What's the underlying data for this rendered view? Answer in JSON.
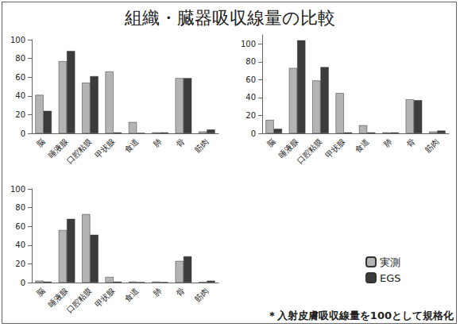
{
  "title": "組織・臓器吸収線量の比較",
  "note": "＊入射皮膚吸収線量を100として規格化",
  "legend": "lower right",
  "chart_data": [
    {
      "type": "bar",
      "grid": false,
      "categories": [
        "脳",
        "唾液腺",
        "口腔粘膜",
        "甲状腺",
        "食道",
        "肺",
        "骨",
        "筋肉"
      ],
      "series": [
        {
          "name": "実測",
          "color": "#b4b4b4",
          "values": [
            41,
            77,
            54,
            66,
            12,
            1,
            59,
            2
          ]
        },
        {
          "name": "EGS",
          "color": "#3c3c3c",
          "values": [
            24,
            88,
            61,
            1,
            0.5,
            1,
            59,
            4
          ]
        }
      ],
      "ylim": [
        0,
        100
      ],
      "yticks": [
        0,
        20,
        40,
        60,
        80,
        100
      ]
    },
    {
      "type": "bar",
      "grid": false,
      "categories": [
        "脳",
        "唾液腺",
        "口腔粘膜",
        "甲状腺",
        "食道",
        "肺",
        "骨",
        "筋肉"
      ],
      "series": [
        {
          "name": "実測",
          "color": "#b4b4b4",
          "values": [
            15,
            73,
            59,
            45,
            9,
            1,
            38,
            2
          ]
        },
        {
          "name": "EGS",
          "color": "#3c3c3c",
          "values": [
            5,
            104,
            74,
            1,
            1,
            1,
            37,
            3
          ]
        }
      ],
      "ylim": [
        0,
        110
      ],
      "yticks": [
        0,
        20,
        40,
        60,
        80,
        100
      ]
    },
    {
      "type": "bar",
      "grid": false,
      "categories": [
        "脳",
        "唾液腺",
        "口腔粘膜",
        "甲状腺",
        "食道",
        "肺",
        "骨",
        "筋肉"
      ],
      "series": [
        {
          "name": "実測",
          "color": "#b4b4b4",
          "values": [
            2,
            56,
            73,
            6,
            1,
            1,
            23,
            0.5
          ]
        },
        {
          "name": "EGS",
          "color": "#3c3c3c",
          "values": [
            1,
            68,
            51,
            1,
            0.5,
            0.5,
            28,
            2
          ]
        }
      ],
      "ylim": [
        0,
        100
      ],
      "yticks": [
        0,
        20,
        40,
        60,
        80,
        100
      ]
    }
  ]
}
